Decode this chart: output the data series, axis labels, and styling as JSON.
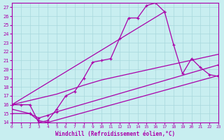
{
  "xlabel": "Windchill (Refroidissement éolien,°C)",
  "xlim": [
    0,
    23
  ],
  "ylim": [
    14,
    27.5
  ],
  "background_color": "#c8eef0",
  "grid_color": "#a8d8dc",
  "line_color": "#aa00aa",
  "line1_x": [
    0,
    1,
    2,
    3,
    4,
    5,
    6,
    7,
    8,
    9,
    10,
    11,
    12,
    13,
    14,
    15,
    16,
    17
  ],
  "line1_y": [
    16.0,
    16.0,
    16.0,
    14.0,
    14.2,
    15.5,
    17.0,
    17.5,
    19.0,
    20.8,
    21.0,
    21.2,
    23.5,
    25.8,
    25.8,
    27.2,
    27.5,
    26.5
  ],
  "line2_x": [
    0,
    17,
    18,
    19,
    20,
    21,
    22,
    23
  ],
  "line2_y": [
    16.0,
    26.5,
    22.8,
    19.5,
    21.2,
    20.2,
    19.4,
    19.2
  ],
  "line3_x": [
    0,
    5,
    8,
    10,
    23
  ],
  "line3_y": [
    16.0,
    17.2,
    18.2,
    18.8,
    21.7
  ],
  "line4_x": [
    0,
    2,
    3,
    4,
    5,
    23
  ],
  "line4_y": [
    15.0,
    15.0,
    14.5,
    14.8,
    15.2,
    20.5
  ],
  "line5_x": [
    0,
    2,
    3,
    4,
    23
  ],
  "line5_y": [
    15.5,
    15.0,
    14.2,
    14.0,
    19.3
  ],
  "yticks": [
    14,
    15,
    16,
    17,
    18,
    19,
    20,
    21,
    22,
    23,
    24,
    25,
    26,
    27
  ],
  "xticks": [
    0,
    1,
    2,
    3,
    4,
    5,
    6,
    7,
    8,
    9,
    10,
    11,
    12,
    13,
    14,
    15,
    16,
    17,
    18,
    19,
    20,
    21,
    22,
    23
  ]
}
